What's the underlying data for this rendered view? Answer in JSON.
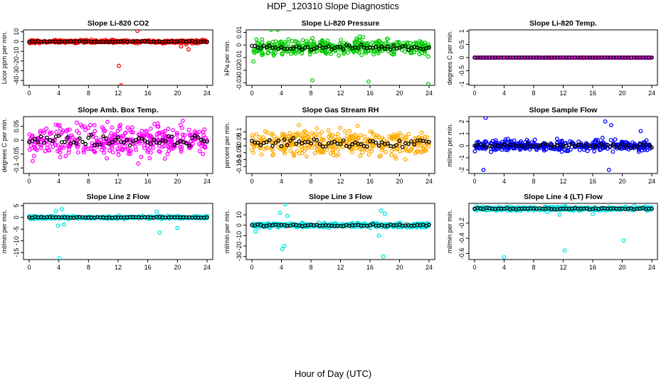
{
  "page": {
    "title": "HDP_120310  Slope Diagnostics",
    "xlabel": "Hour of Day (UTC)"
  },
  "chart_data": [
    {
      "id": "co2",
      "type": "scatter",
      "title": "Slope Li-820 CO2",
      "ylabel": "Licor ppm per min.",
      "color": "#ff0000",
      "xlim": [
        0,
        24
      ],
      "ylim": [
        -45,
        12
      ],
      "yticks": [
        -40,
        -30,
        -20,
        -10,
        0,
        10
      ],
      "xticks": [
        0,
        4,
        8,
        12,
        16,
        20,
        24
      ],
      "center": 0,
      "spread": 1.5,
      "outliers": [
        [
          12.1,
          -25
        ],
        [
          12.4,
          -45
        ],
        [
          14.6,
          11
        ],
        [
          20.5,
          -5
        ],
        [
          21.2,
          -3
        ],
        [
          21.5,
          -8
        ]
      ]
    },
    {
      "id": "pressure",
      "type": "scatter",
      "title": "Slope Li-820 Pressure",
      "ylabel": "kPa per min.",
      "color": "#00cc00",
      "xlim": [
        0,
        24
      ],
      "ylim": [
        -0.032,
        0.012
      ],
      "yticks": [
        -0.03,
        -0.02,
        -0.01,
        0.0,
        0.01
      ],
      "xticks": [
        0,
        4,
        8,
        12,
        16,
        20,
        24
      ],
      "center": -0.002,
      "spread": 0.006,
      "outliers": [
        [
          2.6,
          0.012
        ],
        [
          3.5,
          0.012
        ],
        [
          8.2,
          -0.028
        ],
        [
          15.8,
          -0.029
        ],
        [
          23.9,
          -0.031
        ],
        [
          0.2,
          -0.013
        ]
      ]
    },
    {
      "id": "temp",
      "type": "scatter",
      "title": "Slope Li-820 Temp.",
      "ylabel": "degrees C per min.",
      "color": "#ff00ff",
      "xlim": [
        0,
        24
      ],
      "ylim": [
        -1.05,
        1.05
      ],
      "yticks": [
        -1.0,
        -0.5,
        0.0,
        0.5,
        1.0
      ],
      "xticks": [
        0,
        4,
        8,
        12,
        16,
        20,
        24
      ],
      "center": 0,
      "spread": 0.005,
      "outliers": []
    },
    {
      "id": "ambbox",
      "type": "scatter",
      "title": "Slope Amb. Box Temp.",
      "ylabel": "degrees C per min.",
      "color": "#ff00ff",
      "xlim": [
        0,
        24
      ],
      "ylim": [
        -0.12,
        0.085
      ],
      "yticks": [
        -0.1,
        -0.05,
        0.0,
        0.05
      ],
      "xticks": [
        0,
        4,
        8,
        12,
        16,
        20,
        24
      ],
      "center": 0,
      "spread": 0.055,
      "outliers": []
    },
    {
      "id": "rh",
      "type": "scatter",
      "title": "Slope Gas Stream RH",
      "ylabel": "percent per min.",
      "color": "#ffaa00",
      "xlim": [
        0,
        24
      ],
      "ylim": [
        -0.2,
        0.21
      ],
      "yticks": [
        -0.15,
        -0.1,
        -0.05,
        0.0,
        0.05,
        0.1
      ],
      "xticks": [
        0,
        4,
        8,
        12,
        16,
        20,
        24
      ],
      "center": 0.02,
      "spread": 0.09,
      "outliers": []
    },
    {
      "id": "sampleflow",
      "type": "scatter",
      "title": "Slope Sample Flow",
      "ylabel": "ml/min per min.",
      "color": "#0000ff",
      "xlim": [
        0,
        24
      ],
      "ylim": [
        -2.3,
        2.4
      ],
      "yticks": [
        -2,
        -1,
        0,
        1,
        2
      ],
      "xticks": [
        0,
        4,
        8,
        12,
        16,
        20,
        24
      ],
      "center": 0,
      "spread": 0.45,
      "outliers": [
        [
          1.5,
          2.3
        ],
        [
          17.7,
          2.0
        ],
        [
          18.5,
          1.7
        ],
        [
          18.2,
          -2.0
        ],
        [
          1.2,
          -2.0
        ],
        [
          22.5,
          1.2
        ]
      ]
    },
    {
      "id": "line2",
      "type": "scatter",
      "title": "Slope Line 2 Flow",
      "ylabel": "ml/min per min.",
      "color": "#00e5e5",
      "xlim": [
        0,
        24
      ],
      "ylim": [
        -18,
        6
      ],
      "yticks": [
        -15,
        -10,
        -5,
        0,
        5
      ],
      "xticks": [
        0,
        4,
        8,
        12,
        16,
        20,
        24
      ],
      "center": 0,
      "spread": 0.6,
      "outliers": [
        [
          4.1,
          -17.5
        ],
        [
          4.4,
          3.5
        ],
        [
          4.7,
          -3.0
        ],
        [
          3.9,
          -3.5
        ],
        [
          17.6,
          -6.5
        ],
        [
          20.0,
          -4.5
        ],
        [
          17.2,
          2.5
        ],
        [
          3.6,
          2.8
        ]
      ]
    },
    {
      "id": "line3",
      "type": "scatter",
      "title": "Slope Line 3 Flow",
      "ylabel": "ml/min per min.",
      "color": "#00e5e5",
      "xlim": [
        0,
        24
      ],
      "ylim": [
        -33,
        21
      ],
      "yticks": [
        -30,
        -20,
        -10,
        0,
        10
      ],
      "xticks": [
        0,
        4,
        8,
        12,
        16,
        20,
        24
      ],
      "center": 0,
      "spread": 2.2,
      "outliers": [
        [
          4.1,
          -23
        ],
        [
          4.4,
          -20
        ],
        [
          4.5,
          20
        ],
        [
          3.8,
          12
        ],
        [
          4.8,
          9
        ],
        [
          17.5,
          14
        ],
        [
          17.8,
          -30
        ],
        [
          18.0,
          11
        ],
        [
          17.2,
          -10
        ],
        [
          0.5,
          -6
        ]
      ]
    },
    {
      "id": "line4",
      "type": "scatter",
      "title": "Slope Line 4 (LT) Flow",
      "ylabel": "ml/min per min.",
      "color": "#00e5e5",
      "xlim": [
        0,
        24
      ],
      "ylim": [
        -0.68,
        0.06
      ],
      "yticks": [
        -0.6,
        -0.4,
        -0.2
      ],
      "xticks": [
        0,
        4,
        8,
        12,
        16,
        20,
        24
      ],
      "center": -0.01,
      "spread": 0.025,
      "outliers": [
        [
          4.0,
          -0.65
        ],
        [
          12.2,
          -0.56
        ],
        [
          20.2,
          -0.43
        ],
        [
          11.5,
          -0.09
        ],
        [
          16.0,
          -0.08
        ]
      ]
    }
  ]
}
